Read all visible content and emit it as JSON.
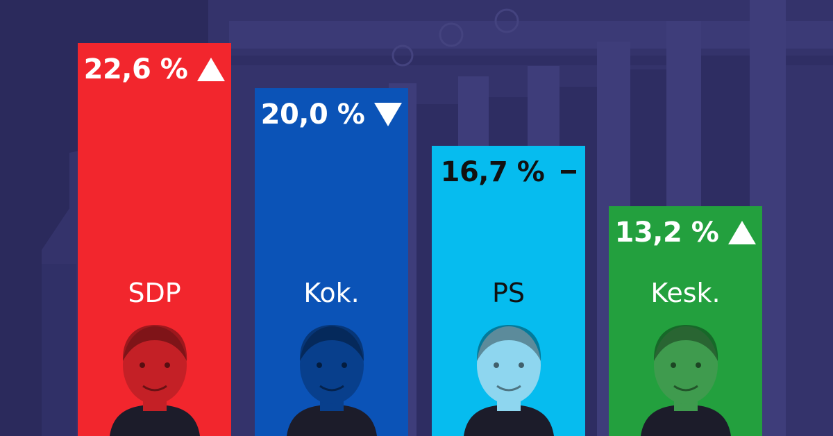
{
  "chart_data": {
    "type": "bar",
    "categories": [
      "SDP",
      "Kok.",
      "PS",
      "Kesk."
    ],
    "values": [
      22.6,
      20.0,
      16.7,
      13.2
    ],
    "value_labels": [
      "22,6 %",
      "20,0 %",
      "16,7 %",
      "13,2 %"
    ],
    "trends": [
      "up",
      "down",
      "flat",
      "up"
    ],
    "title": "",
    "xlabel": "",
    "ylabel": "",
    "ylim": [
      0,
      23
    ],
    "grid": false,
    "legend": "none"
  },
  "colors": {
    "background": "#2b2a5c",
    "building": "#3a3a72",
    "bars": [
      "#f2262d",
      "#0b53b7",
      "#06bcef",
      "#23a03e"
    ],
    "value_text": [
      "#ffffff",
      "#ffffff",
      "#111111",
      "#ffffff"
    ],
    "party_text": [
      "#ffffff",
      "#ffffff",
      "#111111",
      "#ffffff"
    ],
    "portrait_tint": [
      "#c42026",
      "#083f8c",
      "#8ed6ef",
      "#3f9b4e"
    ]
  },
  "icons": {
    "up": "triangle-up-icon",
    "down": "triangle-down-icon",
    "flat": "dash-icon",
    "portrait": "person-portrait-icon"
  }
}
